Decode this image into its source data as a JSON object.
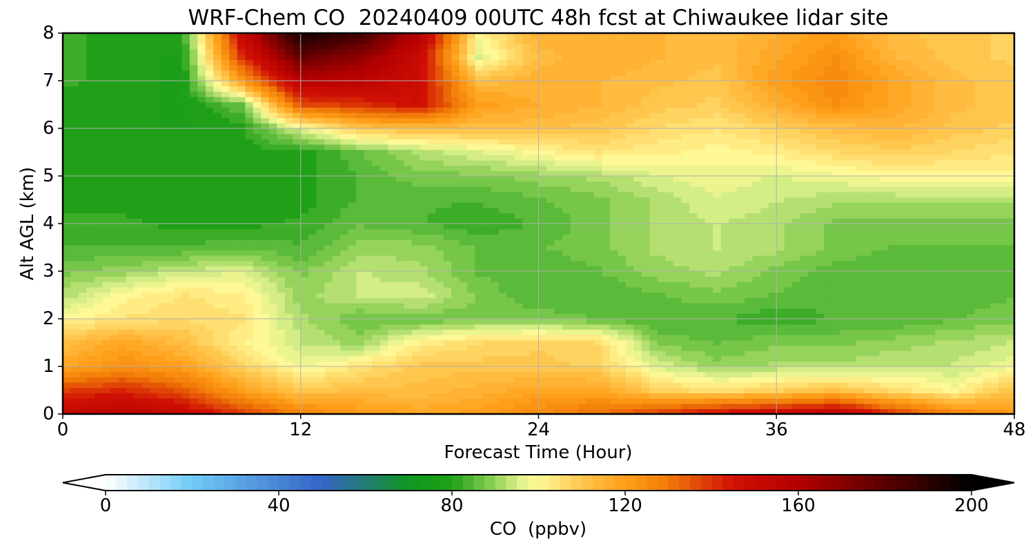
{
  "chart_data": {
    "type": "heatmap",
    "title": "WRF-Chem CO  20240409 00UTC 48h fcst at Chiwaukee lidar site",
    "xlabel": "Forecast Time (Hour)",
    "ylabel": "Alt AGL (km)",
    "xlim": [
      0,
      48
    ],
    "ylim": [
      0,
      8
    ],
    "xticks": [
      "0",
      "12",
      "24",
      "36",
      "48"
    ],
    "yticks": [
      "0",
      "1",
      "2",
      "3",
      "4",
      "5",
      "6",
      "7",
      "8"
    ],
    "grid": true,
    "x": [
      0,
      3,
      6,
      9,
      12,
      15,
      18,
      21,
      24,
      27,
      30,
      33,
      36,
      39,
      42,
      45,
      48
    ],
    "y": [
      0,
      0.5,
      1,
      1.5,
      2,
      2.5,
      3,
      3.5,
      4,
      4.5,
      5,
      5.5,
      6,
      6.5,
      7,
      7.5,
      8
    ],
    "z_by_altitude": [
      [
        152,
        158,
        152,
        140,
        128,
        122,
        118,
        120,
        126,
        132,
        140,
        148,
        152,
        158,
        140,
        128,
        122
      ],
      [
        138,
        142,
        135,
        120,
        110,
        112,
        112,
        115,
        118,
        118,
        108,
        105,
        108,
        112,
        105,
        100,
        112
      ],
      [
        118,
        124,
        120,
        108,
        98,
        104,
        110,
        110,
        110,
        108,
        96,
        90,
        92,
        92,
        94,
        94,
        98
      ],
      [
        112,
        118,
        112,
        102,
        94,
        90,
        102,
        106,
        108,
        106,
        88,
        86,
        88,
        88,
        90,
        92,
        94
      ],
      [
        100,
        104,
        106,
        104,
        92,
        86,
        86,
        88,
        88,
        86,
        84,
        84,
        82,
        84,
        84,
        86,
        88
      ],
      [
        92,
        100,
        104,
        102,
        90,
        94,
        96,
        88,
        84,
        84,
        86,
        88,
        86,
        84,
        84,
        85,
        86
      ],
      [
        88,
        90,
        94,
        96,
        88,
        94,
        92,
        86,
        84,
        86,
        90,
        92,
        88,
        85,
        84,
        84,
        84
      ],
      [
        84,
        84,
        84,
        86,
        84,
        90,
        90,
        86,
        86,
        88,
        92,
        94,
        92,
        88,
        86,
        86,
        86
      ],
      [
        82,
        82,
        80,
        80,
        82,
        86,
        84,
        82,
        84,
        88,
        92,
        94,
        92,
        88,
        88,
        88,
        88
      ],
      [
        80,
        80,
        80,
        80,
        80,
        84,
        84,
        84,
        86,
        88,
        92,
        96,
        94,
        92,
        92,
        92,
        92
      ],
      [
        80,
        80,
        80,
        80,
        80,
        84,
        88,
        88,
        90,
        92,
        96,
        98,
        96,
        98,
        100,
        100,
        100
      ],
      [
        80,
        80,
        80,
        80,
        80,
        86,
        92,
        96,
        100,
        104,
        102,
        100,
        102,
        106,
        108,
        106,
        104
      ],
      [
        80,
        80,
        78,
        80,
        96,
        110,
        112,
        112,
        112,
        110,
        106,
        104,
        108,
        112,
        114,
        110,
        108
      ],
      [
        80,
        80,
        78,
        86,
        136,
        140,
        146,
        120,
        116,
        114,
        110,
        108,
        116,
        124,
        118,
        112,
        110
      ],
      [
        82,
        80,
        78,
        120,
        158,
        156,
        148,
        112,
        116,
        114,
        112,
        110,
        120,
        126,
        118,
        112,
        110
      ],
      [
        82,
        80,
        78,
        140,
        178,
        168,
        150,
        96,
        112,
        116,
        114,
        112,
        118,
        124,
        114,
        110,
        108
      ],
      [
        82,
        80,
        80,
        150,
        196,
        186,
        158,
        100,
        116,
        116,
        114,
        112,
        116,
        120,
        112,
        110,
        108
      ]
    ],
    "colorbar": {
      "label": "CO  (ppbv)",
      "min": 0,
      "max": 200,
      "ticks": [
        "0",
        "40",
        "80",
        "120",
        "160",
        "200"
      ],
      "extend": "both",
      "colormap": [
        [
          0,
          "#ffffff"
        ],
        [
          20,
          "#6fcaf6"
        ],
        [
          50,
          "#3563c6"
        ],
        [
          70,
          "#109620"
        ],
        [
          80,
          "#20a018"
        ],
        [
          88,
          "#7cc94c"
        ],
        [
          96,
          "#e1f28d"
        ],
        [
          100,
          "#fff896"
        ],
        [
          110,
          "#ffc64e"
        ],
        [
          120,
          "#ff9e18"
        ],
        [
          130,
          "#f07a08"
        ],
        [
          145,
          "#d01004"
        ],
        [
          160,
          "#b40000"
        ],
        [
          180,
          "#5a0000"
        ],
        [
          200,
          "#000000"
        ]
      ]
    }
  }
}
